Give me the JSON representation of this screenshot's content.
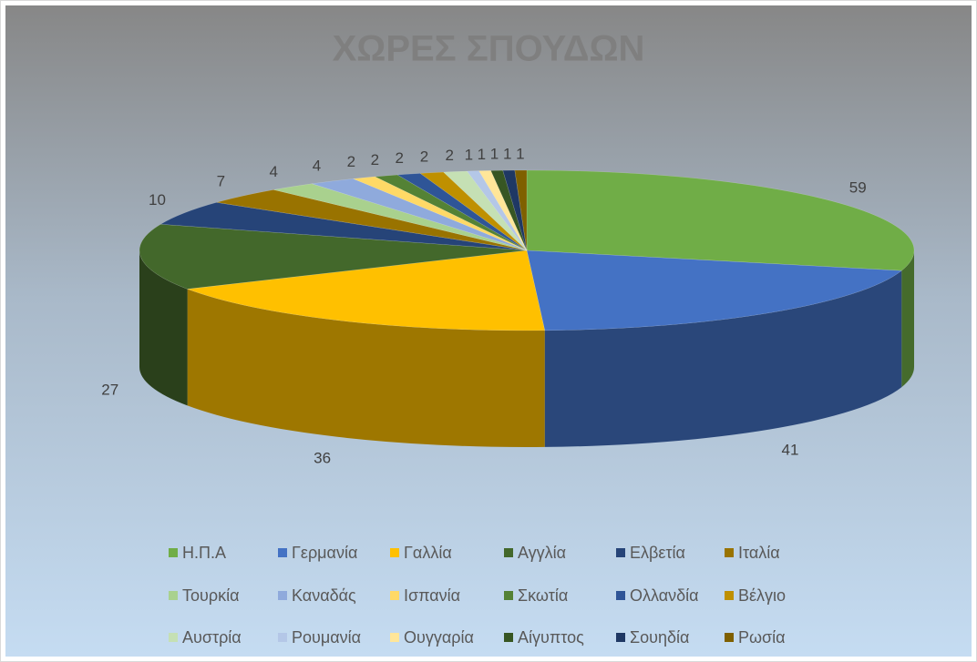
{
  "chart_data": {
    "type": "pie",
    "title": "ΧΩΡΕΣ ΣΠΟΥΔΩΝ",
    "categories": [
      "Η.Π.Α",
      "Γερμανία",
      "Γαλλία",
      "Αγγλία",
      "Ελβετία",
      "Ιταλία",
      "Τουρκία",
      "Καναδάς",
      "Ισπανία",
      "Σκωτία",
      "Ολλανδία",
      "Βέλγιο",
      "Αυστρία",
      "Ρουμανία",
      "Ουγγαρία",
      "Αίγυπτος",
      "Σουηδία",
      "Ρωσία"
    ],
    "values": [
      59,
      41,
      36,
      27,
      10,
      7,
      4,
      4,
      2,
      2,
      2,
      2,
      2,
      1,
      1,
      1,
      1,
      1
    ],
    "colors": [
      "#70ad47",
      "#4472c4",
      "#ffc000",
      "#43682b",
      "#264478",
      "#997300",
      "#a9d18e",
      "#8faadc",
      "#ffd966",
      "#548235",
      "#2f5597",
      "#bf9000",
      "#c5e0b4",
      "#b4c7e7",
      "#ffe699",
      "#375623",
      "#1f3864",
      "#7f6000"
    ],
    "legend": "bottom"
  }
}
